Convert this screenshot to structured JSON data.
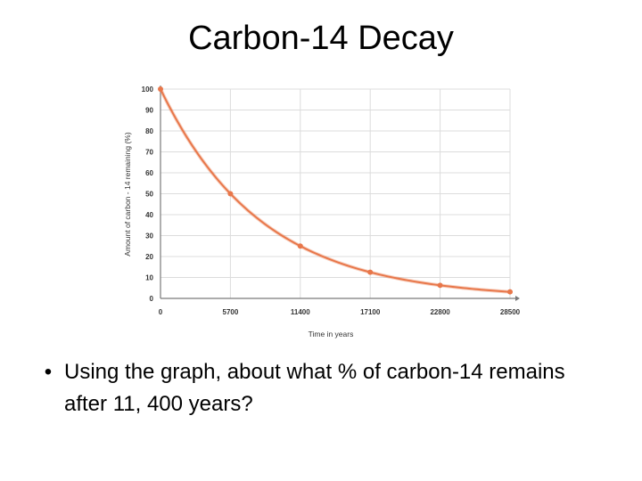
{
  "slide": {
    "title": "Carbon-14 Decay",
    "bullet_marker": "•",
    "bullet_text": "Using the graph, about what % of carbon-14 remains after 11, 400 years?"
  },
  "colors": {
    "curve": "#e8774a",
    "grid": "#dcdcdc",
    "axis": "#7a7a7a",
    "tick_text": "#333333"
  },
  "chart_data": {
    "type": "line",
    "title": "",
    "xlabel": "Time in years",
    "ylabel": "Amount of carbon - 14 remaining   (%)",
    "x_ticks": [
      0,
      5700,
      11400,
      17100,
      22800,
      28500
    ],
    "y_ticks": [
      0,
      10,
      20,
      30,
      40,
      50,
      60,
      70,
      80,
      90,
      100
    ],
    "xlim": [
      0,
      28500
    ],
    "ylim": [
      0,
      100
    ],
    "grid": true,
    "series": [
      {
        "x": [
          0,
          5700,
          11400,
          17100,
          22800,
          28500
        ],
        "y": [
          100,
          50,
          25,
          12.5,
          6.25,
          3.125
        ]
      }
    ]
  }
}
